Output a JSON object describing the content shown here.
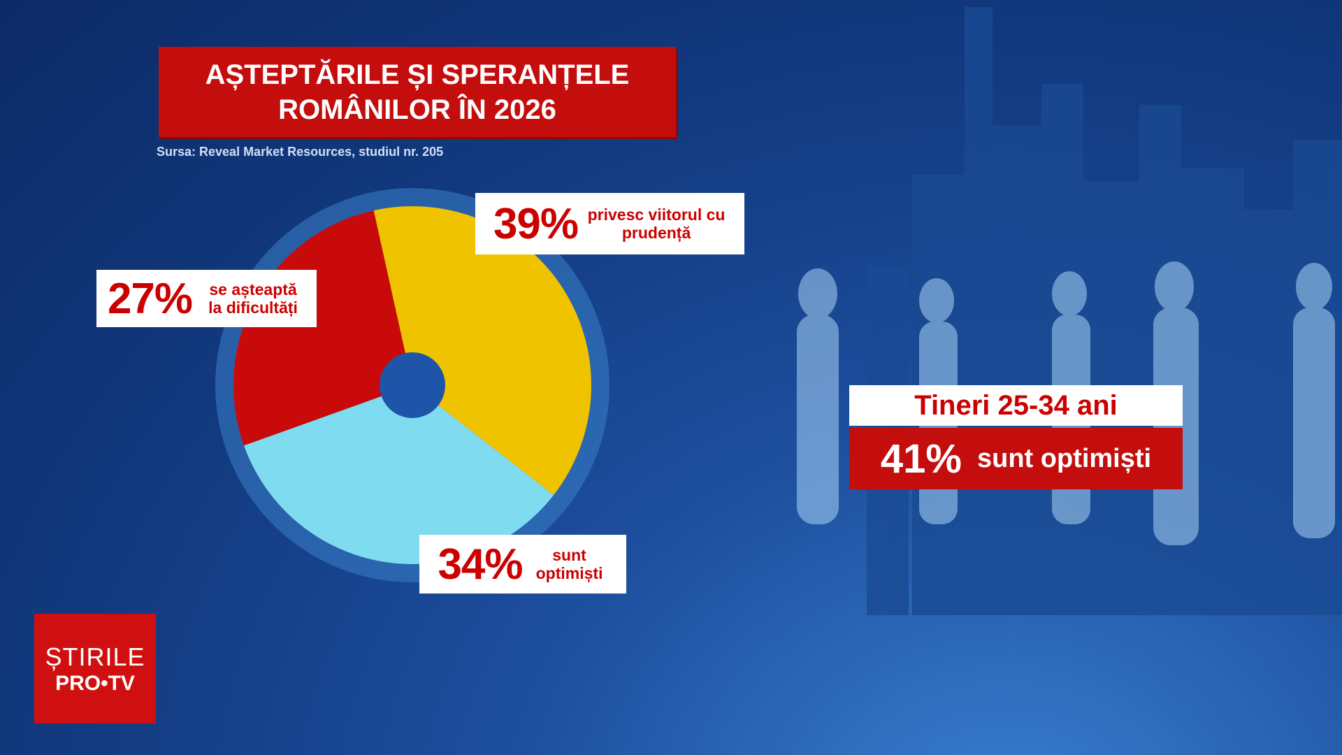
{
  "chart_data": {
    "type": "pie",
    "title": "AȘTEPTĂRILE ȘI SPERANȚELE ROMÂNILOR ÎN 2026",
    "source": "Sursa: Reveal Market Resources, studiul nr. 205",
    "categories": [
      "privesc viitorul cu prudență",
      "sunt optimiști",
      "se așteaptă la dificultăți"
    ],
    "values": [
      39,
      34,
      27
    ],
    "value_labels": [
      "39%",
      "34%",
      "27%"
    ],
    "colors": [
      "#f0c300",
      "#7fdcf0",
      "#c80a0a"
    ],
    "callout": {
      "heading": "Tineri 25-34 ani",
      "value_label": "41%",
      "text": "sunt optimiști"
    }
  },
  "logo": {
    "line1": "ȘTIRILE",
    "line2": "PRO•TV"
  }
}
